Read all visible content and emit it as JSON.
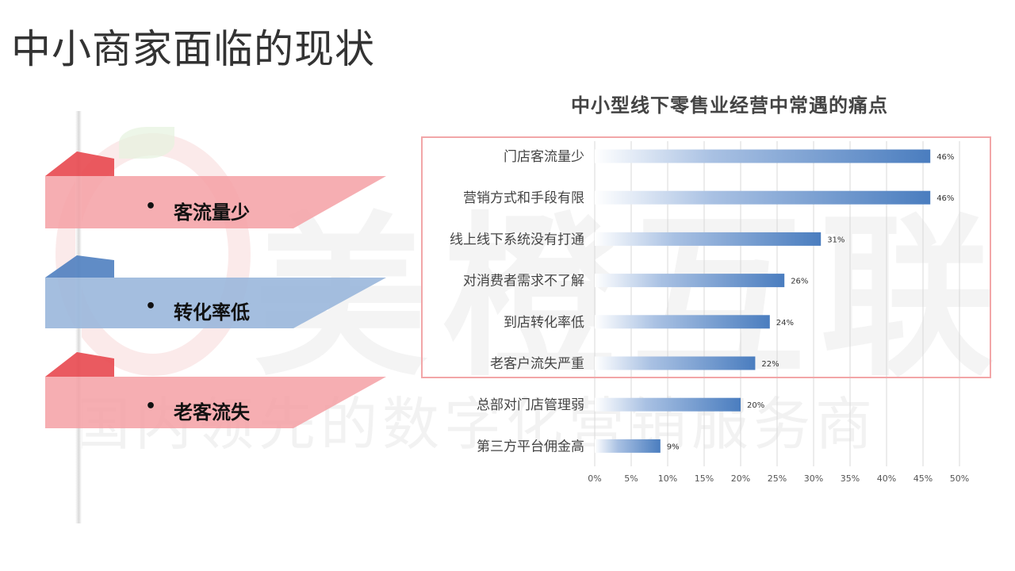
{
  "page": {
    "title": "中小商家面临的现状"
  },
  "watermark": {
    "brand": "美橙互联",
    "slogan": "国内领先的数字化营销服务商"
  },
  "ribbons": [
    {
      "label": "客流量少",
      "color": "#f4a0a4",
      "tab_color": "#e8484f"
    },
    {
      "label": "转化率低",
      "color": "#9ab7dc",
      "tab_color": "#4f7fc0"
    },
    {
      "label": "老客流失",
      "color": "#f4a0a4",
      "tab_color": "#e8484f"
    }
  ],
  "chart_data": {
    "type": "bar",
    "orientation": "horizontal",
    "title": "中小型线下零售业经营中常遇的痛点",
    "categories": [
      "门店客流量少",
      "营销方式和手段有限",
      "线上线下系统没有打通",
      "对消费者需求不了解",
      "到店转化率低",
      "老客户流失严重",
      "总部对门店管理弱",
      "第三方平台佣金高"
    ],
    "values": [
      46,
      46,
      31,
      26,
      24,
      22,
      20,
      9
    ],
    "value_labels": [
      "46%",
      "46%",
      "31%",
      "26%",
      "24%",
      "22%",
      "20%",
      "9%"
    ],
    "xlim": [
      0,
      50
    ],
    "xticks": [
      "0%",
      "5%",
      "10%",
      "15%",
      "20%",
      "25%",
      "30%",
      "35%",
      "40%",
      "45%",
      "50%"
    ],
    "grid": "vertical",
    "bar_color": "#4a7dbf",
    "highlight_border": "#f2a6a8"
  }
}
